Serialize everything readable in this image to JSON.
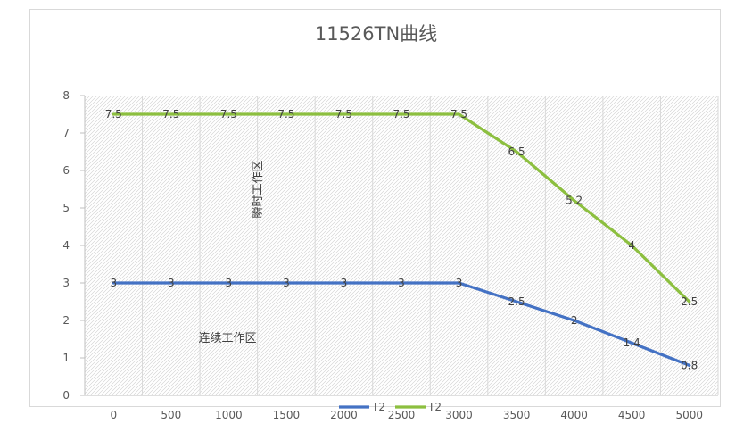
{
  "chart_data": {
    "type": "line",
    "title": "11526TN曲线",
    "categories": [
      "0",
      "500",
      "1000",
      "1500",
      "2000",
      "2500",
      "3000",
      "3500",
      "4000",
      "4500",
      "5000"
    ],
    "series": [
      {
        "name": "T2",
        "color": "#4472c4",
        "values": [
          3,
          3,
          3,
          3,
          3,
          3,
          3,
          2.5,
          2,
          1.4,
          0.8
        ],
        "labels": [
          "3",
          "3",
          "3",
          "3",
          "3",
          "3",
          "3",
          "2.5",
          "2",
          "1.4",
          "0.8"
        ]
      },
      {
        "name": "T2",
        "color": "#8cbf3f",
        "values": [
          7.5,
          7.5,
          7.5,
          7.5,
          7.5,
          7.5,
          7.5,
          6.5,
          5.2,
          4,
          2.5
        ],
        "labels": [
          "7.5",
          "7.5",
          "7.5",
          "7.5",
          "7.5",
          "7.5",
          "7.5",
          "6.5",
          "5.2",
          "4",
          "2.5"
        ]
      }
    ],
    "yticks": [
      "0",
      "1",
      "2",
      "3",
      "4",
      "5",
      "6",
      "7",
      "8"
    ],
    "ylim": [
      0,
      8
    ],
    "grid": "vertical hatched plot background",
    "legend": "bottom",
    "annotations": {
      "instant_zone": "瞬时工作区",
      "continuous_zone": "连续工作区"
    }
  }
}
